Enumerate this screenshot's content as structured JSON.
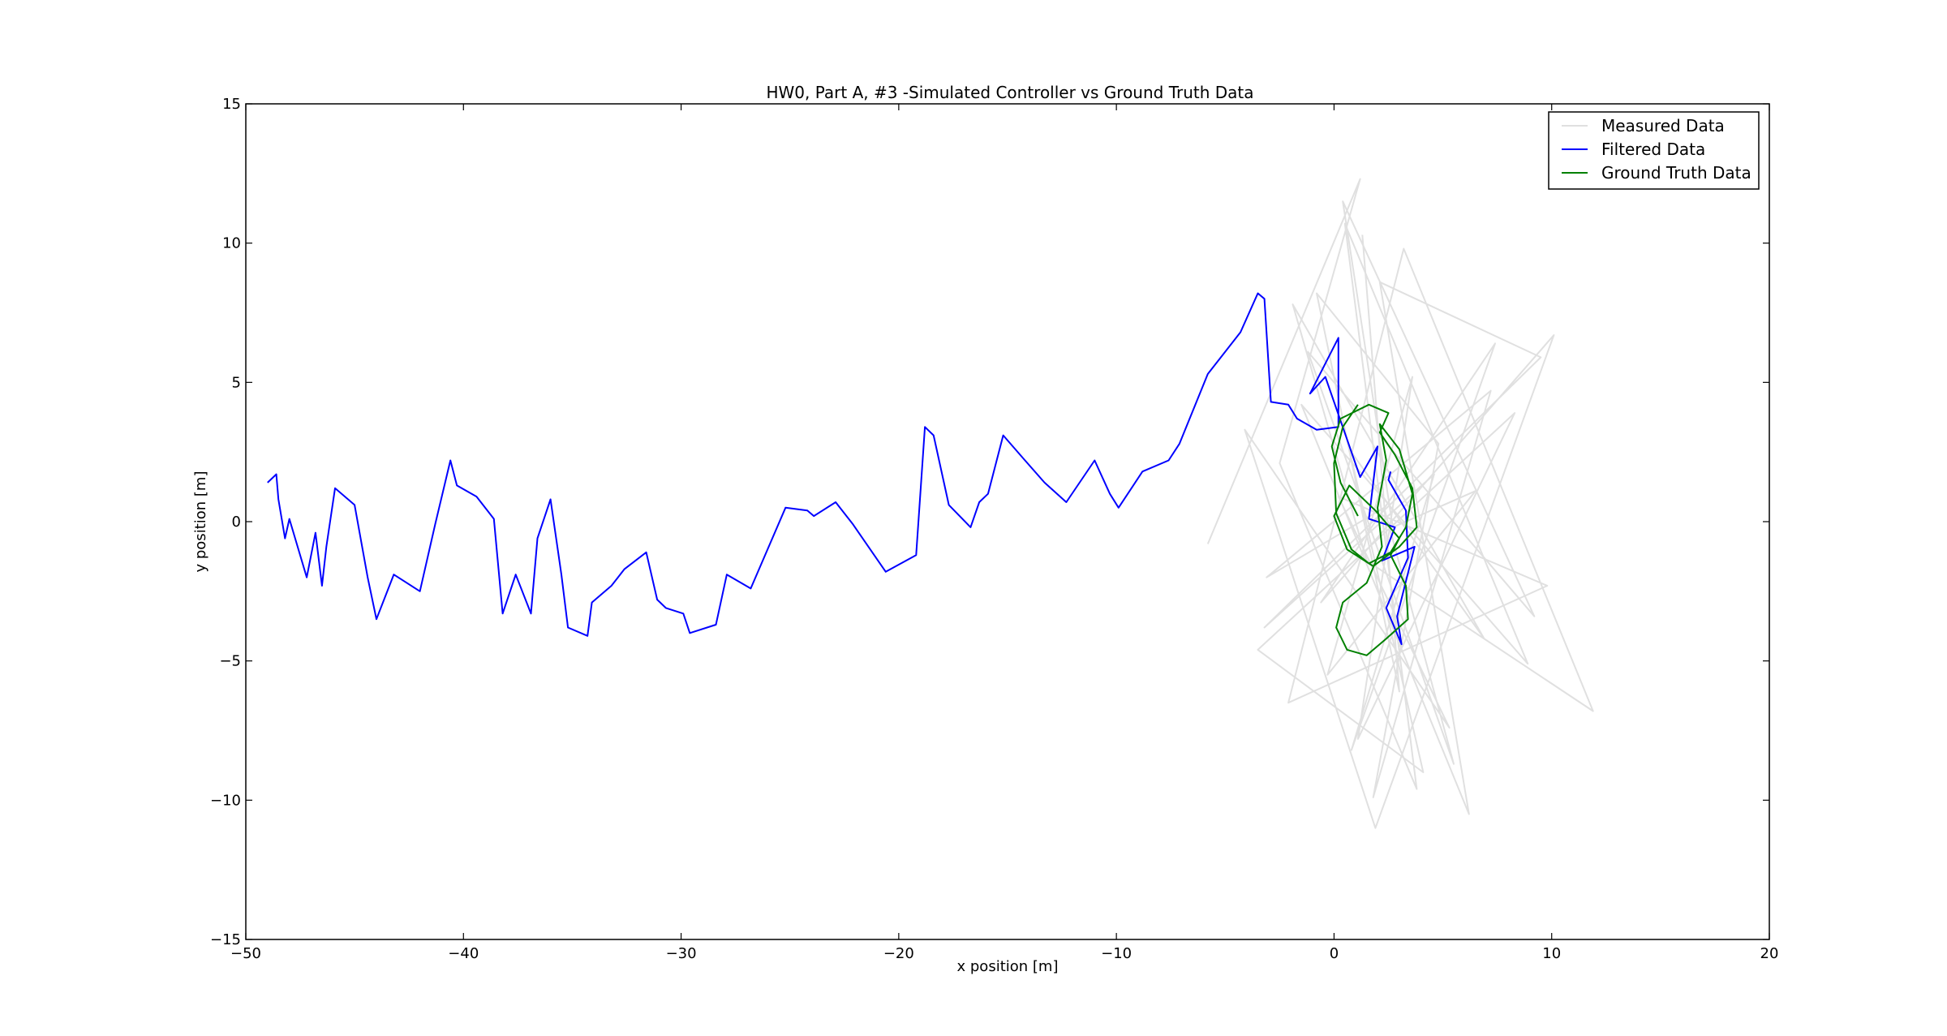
{
  "chart_data": {
    "type": "line",
    "title": "HW0, Part A, #3 -Simulated Controller vs Ground Truth Data",
    "xlabel": "x position [m]",
    "ylabel": "y position [m]",
    "xlim": [
      -50,
      20
    ],
    "ylim": [
      -15,
      15
    ],
    "xticks": [
      -50,
      -40,
      -30,
      -20,
      -10,
      0,
      10,
      20
    ],
    "yticks": [
      -15,
      -10,
      -5,
      0,
      5,
      10,
      15
    ],
    "xtick_labels": [
      "−50",
      "−40",
      "−30",
      "−20",
      "−10",
      "0",
      "10",
      "20"
    ],
    "ytick_labels": [
      "−15",
      "−10",
      "−5",
      "0",
      "5",
      "10",
      "15"
    ],
    "grid": false,
    "legend": {
      "position": "top-right",
      "entries": [
        "Measured Data",
        "Filtered Data",
        "Ground Truth Data"
      ]
    },
    "series": [
      {
        "name": "Measured Data",
        "color": "#e0e0e0",
        "x": [
          -5.8,
          1.2,
          -2.5,
          3.8,
          0.5,
          8.9,
          -1.5,
          6.2,
          2.1,
          9.5,
          -3.2,
          4.6,
          0.8,
          7.4,
          -0.6,
          10.1,
          1.9,
          -4.1,
          5.3,
          0.2,
          9.8,
          -2.1,
          3.2,
          11.9,
          1.5,
          -1.9,
          6.9,
          0.7,
          4.1,
          -3.5,
          8.3,
          1.1,
          3.6,
          -0.3,
          6.5,
          2.7,
          0.4,
          9.2,
          -1.2,
          5.5,
          2.3,
          -3.1,
          7.2,
          1.8,
          4.8,
          -0.8,
          3.0,
          1.3
        ],
        "y": [
          -0.8,
          12.3,
          2.1,
          -9.6,
          10.7,
          -5.1,
          4.2,
          -10.5,
          8.6,
          5.9,
          -3.8,
          1.7,
          -8.2,
          6.4,
          -2.9,
          6.7,
          -11.0,
          3.3,
          -7.4,
          0.9,
          -2.3,
          -6.5,
          9.8,
          -6.8,
          -1.4,
          7.8,
          -4.2,
          2.6,
          -9.0,
          -4.6,
          3.9,
          -7.8,
          5.2,
          -5.5,
          1.1,
          -0.2,
          11.5,
          -3.4,
          6.1,
          -8.7,
          0.5,
          -2.0,
          4.7,
          -9.9,
          2.8,
          8.2,
          -6.1,
          10.3
        ]
      },
      {
        "name": "Filtered Data",
        "color": "#0000ff",
        "x": [
          -49.0,
          -48.6,
          -48.5,
          -48.2,
          -48.0,
          -47.2,
          -46.8,
          -46.5,
          -46.3,
          -45.9,
          -45.0,
          -44.4,
          -44.0,
          -43.2,
          -42.0,
          -41.3,
          -40.6,
          -40.3,
          -39.4,
          -38.6,
          -38.2,
          -37.6,
          -36.9,
          -36.6,
          -36.0,
          -35.5,
          -35.2,
          -34.3,
          -34.1,
          -33.2,
          -32.6,
          -31.6,
          -31.1,
          -30.7,
          -29.9,
          -29.6,
          -28.4,
          -27.9,
          -26.8,
          -25.2,
          -24.2,
          -23.9,
          -22.9,
          -22.1,
          -20.6,
          -19.2,
          -18.8,
          -18.4,
          -17.7,
          -16.7,
          -16.3,
          -15.9,
          -15.2,
          -14.2,
          -13.3,
          -12.3,
          -11.0,
          -10.3,
          -9.9,
          -8.8,
          -7.6,
          -7.1,
          -5.8,
          -4.3,
          -3.5,
          -3.2,
          -2.9,
          -2.1,
          -1.7,
          -0.8,
          0.2,
          0.2,
          -1.1,
          -0.4,
          1.2,
          2.0,
          1.6,
          2.8,
          2.2,
          3.7,
          2.9,
          3.1,
          2.4,
          3.4,
          3.3,
          2.5,
          2.6
        ],
        "y": [
          1.4,
          1.7,
          0.8,
          -0.6,
          0.1,
          -2.0,
          -0.4,
          -2.3,
          -0.9,
          1.2,
          0.6,
          -2.0,
          -3.5,
          -1.9,
          -2.5,
          -0.1,
          2.2,
          1.3,
          0.9,
          0.1,
          -3.3,
          -1.9,
          -3.3,
          -0.6,
          0.8,
          -1.9,
          -3.8,
          -4.1,
          -2.9,
          -2.3,
          -1.7,
          -1.1,
          -2.8,
          -3.1,
          -3.3,
          -4.0,
          -3.7,
          -1.9,
          -2.4,
          0.5,
          0.4,
          0.2,
          0.7,
          -0.1,
          -1.8,
          -1.2,
          3.4,
          3.1,
          0.6,
          -0.2,
          0.7,
          1.0,
          3.1,
          2.2,
          1.4,
          0.7,
          2.2,
          1.0,
          0.5,
          1.8,
          2.2,
          2.8,
          5.3,
          6.8,
          8.2,
          8.0,
          4.3,
          4.2,
          3.7,
          3.3,
          3.4,
          6.6,
          4.6,
          5.2,
          1.6,
          2.7,
          0.1,
          -0.2,
          -1.4,
          -0.9,
          -3.4,
          -4.4,
          -3.1,
          -1.3,
          0.4,
          1.5,
          1.8
        ]
      },
      {
        "name": "Ground Truth Data",
        "color": "#008000",
        "x": [
          1.1,
          0.4,
          0.0,
          0.1,
          0.8,
          1.6,
          2.6,
          3.3,
          3.6,
          3.0,
          2.1,
          2.4,
          2.0,
          2.2,
          1.5,
          0.4,
          0.1,
          0.6,
          1.5,
          2.4,
          3.4,
          3.3,
          2.6,
          3.0,
          1.9,
          0.7,
          0.0,
          0.6,
          1.8,
          3.0,
          3.8,
          3.6,
          2.8,
          2.1,
          2.5,
          1.6,
          0.3,
          -0.1,
          0.3,
          1.1
        ],
        "y": [
          4.2,
          3.4,
          2.1,
          0.3,
          -1.0,
          -1.5,
          -1.1,
          -0.2,
          1.0,
          2.6,
          3.5,
          2.2,
          0.5,
          -0.9,
          -2.2,
          -2.9,
          -3.8,
          -4.6,
          -4.8,
          -4.2,
          -3.5,
          -2.3,
          -1.2,
          -0.6,
          0.4,
          1.3,
          0.2,
          -1.0,
          -1.6,
          -0.9,
          -0.2,
          1.2,
          2.4,
          3.2,
          3.9,
          4.2,
          3.7,
          2.7,
          1.4,
          0.2
        ]
      }
    ]
  }
}
